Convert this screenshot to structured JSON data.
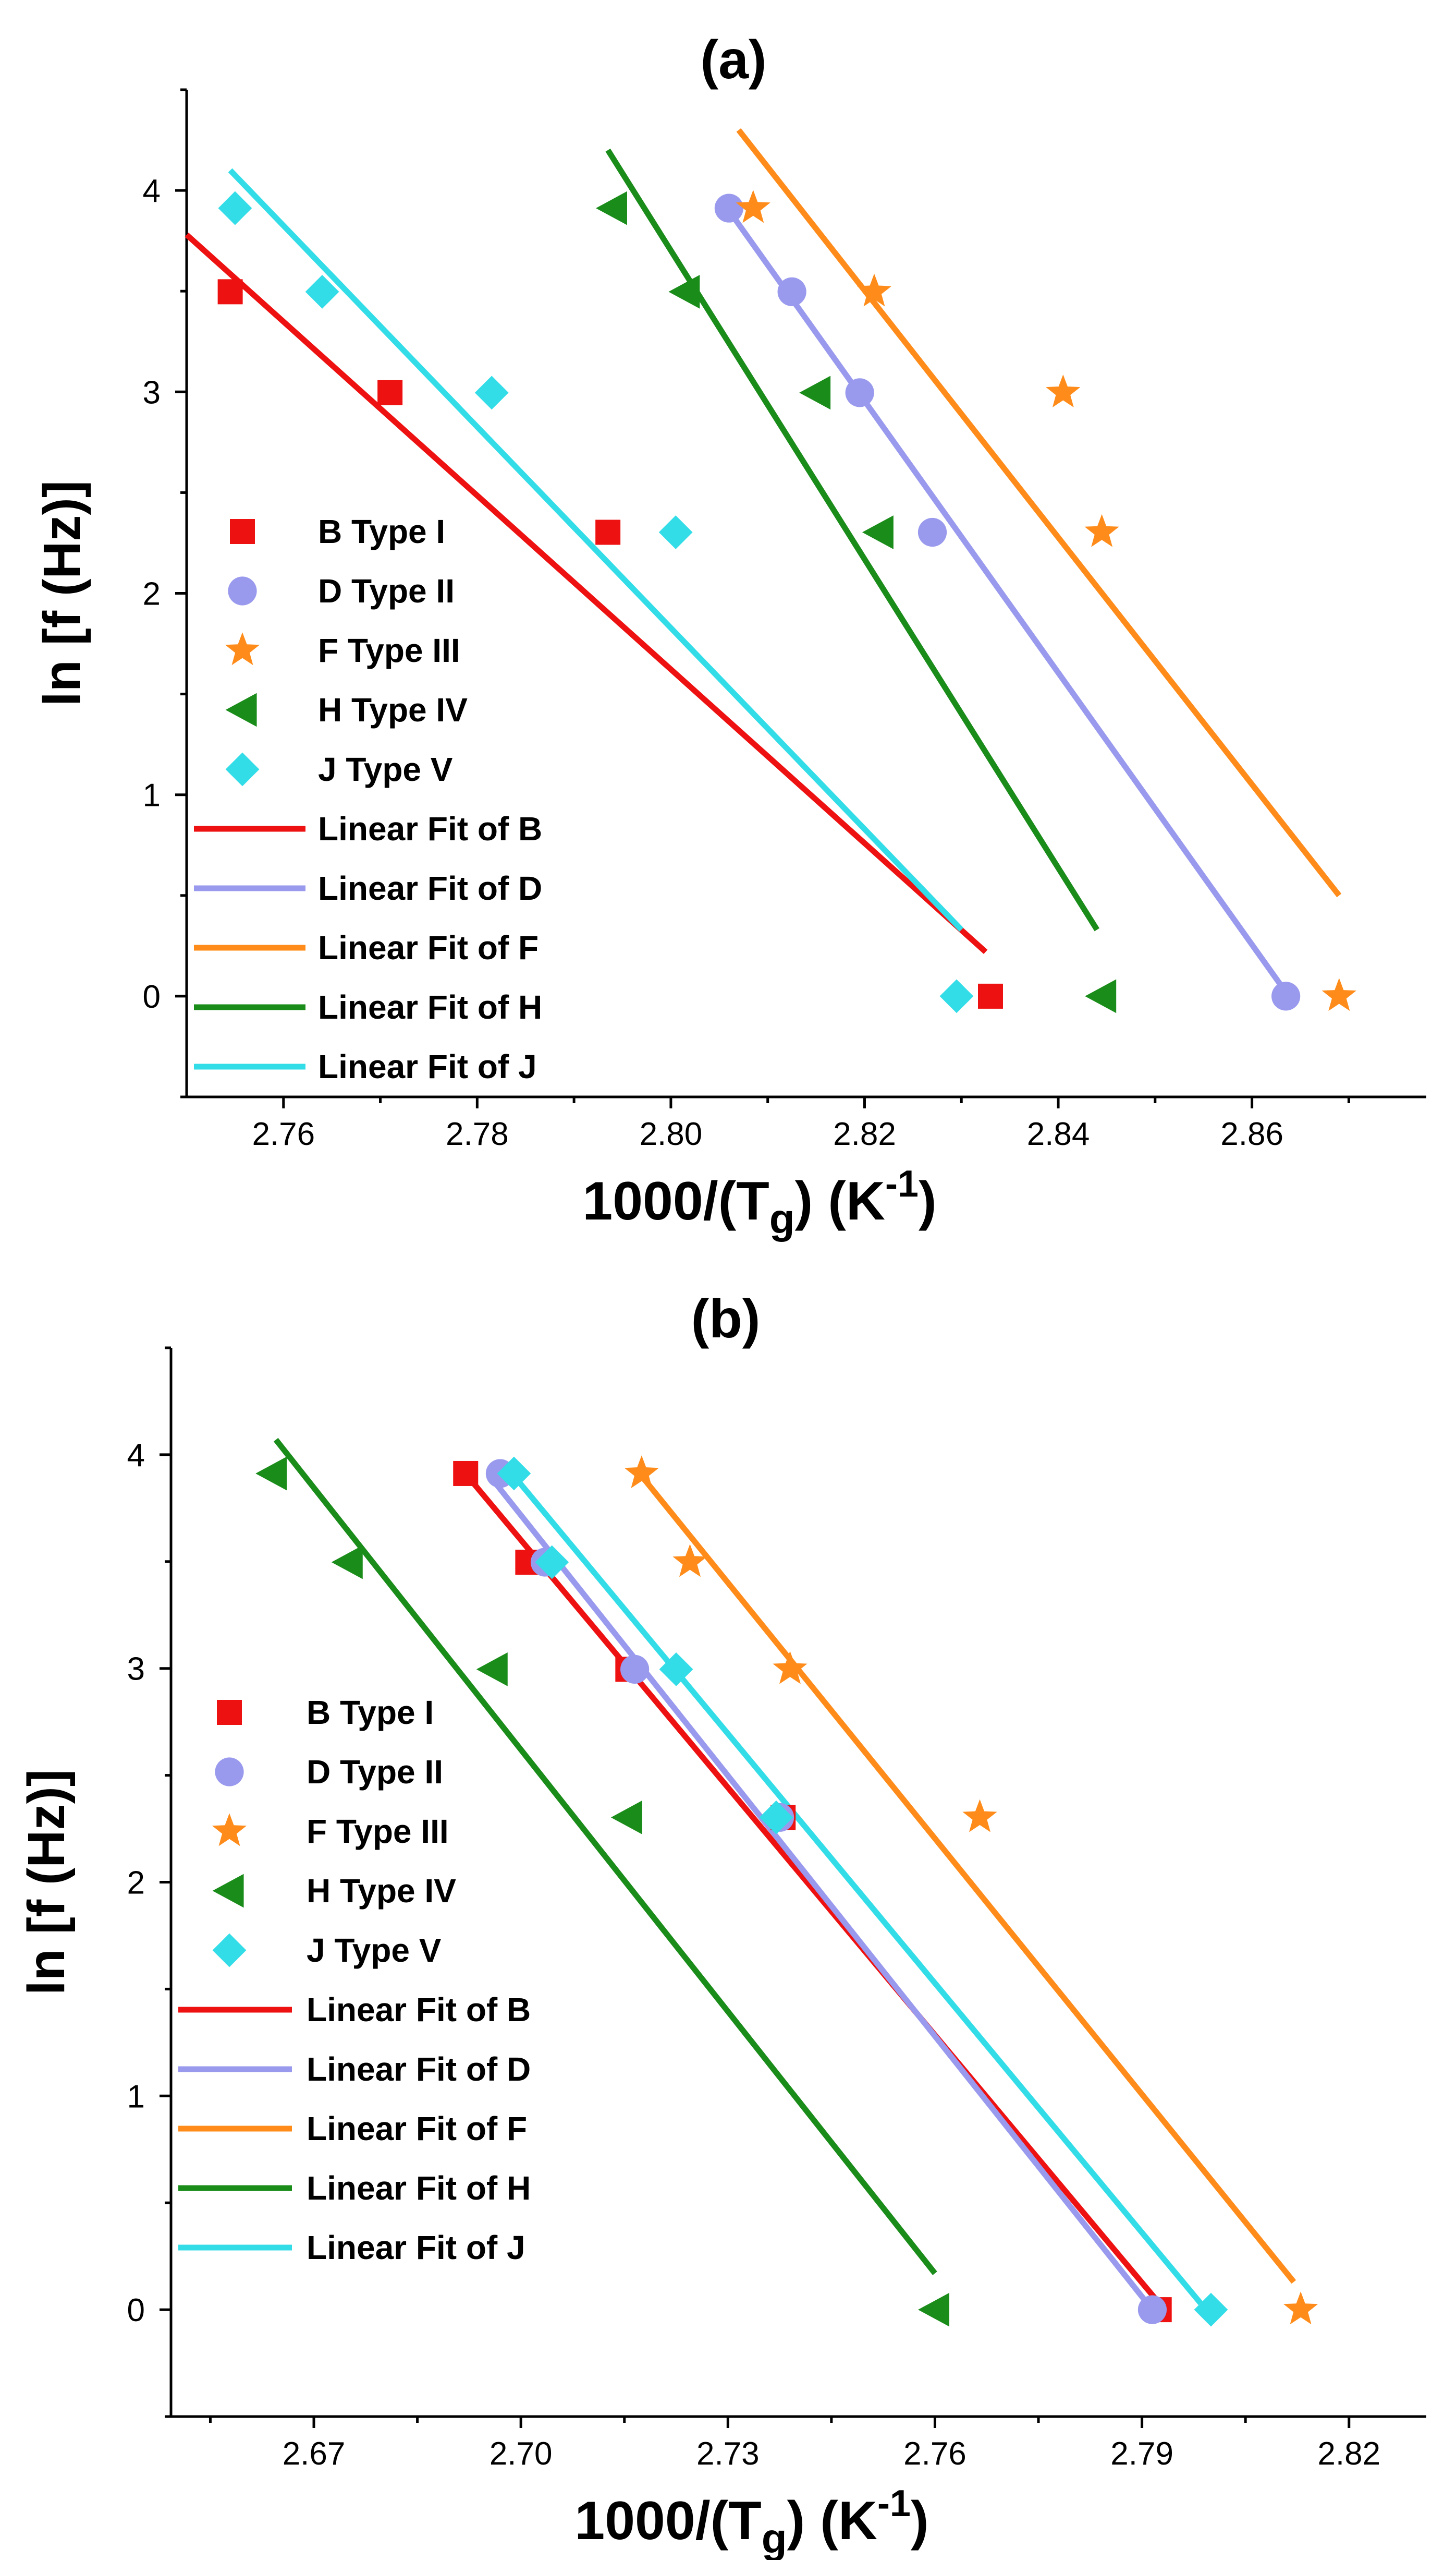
{
  "chart_data": [
    {
      "type": "scatter",
      "title": "(a)",
      "xlabel": {
        "main": "1000/(T",
        "sub": "g",
        "mid": ") (K",
        "sup": "-1",
        "end": ")"
      },
      "ylabel": "ln [f (Hz)]",
      "xlim": [
        2.75,
        2.878
      ],
      "ylim": [
        -0.5,
        4.5
      ],
      "xticks": [
        2.76,
        2.78,
        2.8,
        2.82,
        2.84,
        2.86
      ],
      "xtick_labels": [
        "2.76",
        "2.78",
        "2.80",
        "2.82",
        "2.84",
        "2.86"
      ],
      "yticks": [
        0,
        1,
        2,
        3,
        4
      ],
      "ytick_labels": [
        "0",
        "1",
        "2",
        "3",
        "4"
      ],
      "legend_position": "left",
      "series": [
        {
          "name": "B Type I",
          "marker": "square",
          "color": "#ee1111",
          "x": [
            2.7545,
            2.771,
            2.7935,
            2.833
          ],
          "y": [
            3.497,
            2.996,
            2.303,
            0
          ]
        },
        {
          "name": "D Type II",
          "marker": "circle",
          "color": "#9999ee",
          "x": [
            2.806,
            2.8125,
            2.8195,
            2.827,
            2.8635
          ],
          "y": [
            3.912,
            3.497,
            2.996,
            2.303,
            0
          ]
        },
        {
          "name": "F Type III",
          "marker": "star",
          "color": "#ff8c1a",
          "x": [
            2.8085,
            2.821,
            2.8405,
            2.8445,
            2.869
          ],
          "y": [
            3.912,
            3.497,
            2.996,
            2.303,
            0
          ]
        },
        {
          "name": "H Type IV",
          "marker": "triangle-left",
          "color": "#1a8c1a",
          "x": [
            2.794,
            2.8015,
            2.815,
            2.8215,
            2.8445
          ],
          "y": [
            3.912,
            3.497,
            2.996,
            2.303,
            0
          ]
        },
        {
          "name": "J Type V",
          "marker": "diamond",
          "color": "#33dde8",
          "x": [
            2.755,
            2.764,
            2.7815,
            2.8005,
            2.8295
          ],
          "y": [
            3.912,
            3.497,
            2.996,
            2.303,
            0
          ]
        }
      ],
      "fits": [
        {
          "name": "Linear Fit of B",
          "color": "#ee1111",
          "x": [
            2.75,
            2.8325
          ],
          "y": [
            3.78,
            0.22
          ]
        },
        {
          "name": "Linear Fit of D",
          "color": "#9999ee",
          "x": [
            2.806,
            2.8635
          ],
          "y": [
            3.9,
            0.02
          ]
        },
        {
          "name": "Linear Fit of F",
          "color": "#ff8c1a",
          "x": [
            2.807,
            2.869
          ],
          "y": [
            4.3,
            0.5
          ]
        },
        {
          "name": "Linear Fit of H",
          "color": "#1a8c1a",
          "x": [
            2.7935,
            2.844
          ],
          "y": [
            4.2,
            0.33
          ]
        },
        {
          "name": "Linear Fit of J",
          "color": "#33dde8",
          "x": [
            2.7545,
            2.83
          ],
          "y": [
            4.1,
            0.33
          ]
        }
      ]
    },
    {
      "type": "scatter",
      "title": "(b)",
      "xlabel": {
        "main": "1000/(T",
        "sub": "g",
        "mid": ") (K",
        "sup": "-1",
        "end": ")"
      },
      "ylabel": "ln [f (Hz)]",
      "xlim": [
        2.6493,
        2.8312
      ],
      "ylim": [
        -0.5,
        4.5
      ],
      "xticks": [
        2.67,
        2.7,
        2.73,
        2.76,
        2.79,
        2.82
      ],
      "xtick_labels": [
        "2.67",
        "2.70",
        "2.73",
        "2.76",
        "2.79",
        "2.82"
      ],
      "yticks": [
        0,
        1,
        2,
        3,
        4
      ],
      "ytick_labels": [
        "0",
        "1",
        "2",
        "3",
        "4"
      ],
      "legend_position": "left",
      "series": [
        {
          "name": "B Type I",
          "marker": "square",
          "color": "#ee1111",
          "x": [
            2.692,
            2.701,
            2.7155,
            2.738,
            2.7925
          ],
          "y": [
            3.912,
            3.497,
            2.996,
            2.303,
            0
          ]
        },
        {
          "name": "D Type II",
          "marker": "circle",
          "color": "#9999ee",
          "x": [
            2.697,
            2.7035,
            2.7165,
            2.7375,
            2.7915
          ],
          "y": [
            3.912,
            3.497,
            2.996,
            2.303,
            0
          ]
        },
        {
          "name": "F Type III",
          "marker": "star",
          "color": "#ff8c1a",
          "x": [
            2.7175,
            2.7245,
            2.739,
            2.7665,
            2.813
          ],
          "y": [
            3.912,
            3.497,
            2.996,
            2.303,
            0
          ]
        },
        {
          "name": "H Type IV",
          "marker": "triangle-left",
          "color": "#1a8c1a",
          "x": [
            2.664,
            2.675,
            2.696,
            2.7155,
            2.76
          ],
          "y": [
            3.912,
            3.497,
            2.996,
            2.303,
            0
          ]
        },
        {
          "name": "J Type V",
          "marker": "diamond",
          "color": "#33dde8",
          "x": [
            2.699,
            2.7045,
            2.7225,
            2.737,
            2.8
          ],
          "y": [
            3.912,
            3.497,
            2.996,
            2.303,
            0
          ]
        }
      ],
      "fits": [
        {
          "name": "Linear Fit of B",
          "color": "#ee1111",
          "x": [
            2.692,
            2.7925
          ],
          "y": [
            3.91,
            0.03
          ]
        },
        {
          "name": "Linear Fit of D",
          "color": "#9999ee",
          "x": [
            2.6955,
            2.7915
          ],
          "y": [
            3.9,
            0.0
          ]
        },
        {
          "name": "Linear Fit of F",
          "color": "#ff8c1a",
          "x": [
            2.7175,
            2.812
          ],
          "y": [
            3.9,
            0.13
          ]
        },
        {
          "name": "Linear Fit of H",
          "color": "#1a8c1a",
          "x": [
            2.6645,
            2.76
          ],
          "y": [
            4.07,
            0.17
          ]
        },
        {
          "name": "Linear Fit of J",
          "color": "#33dde8",
          "x": [
            2.6985,
            2.7985
          ],
          "y": [
            3.92,
            0.03
          ]
        }
      ]
    }
  ]
}
